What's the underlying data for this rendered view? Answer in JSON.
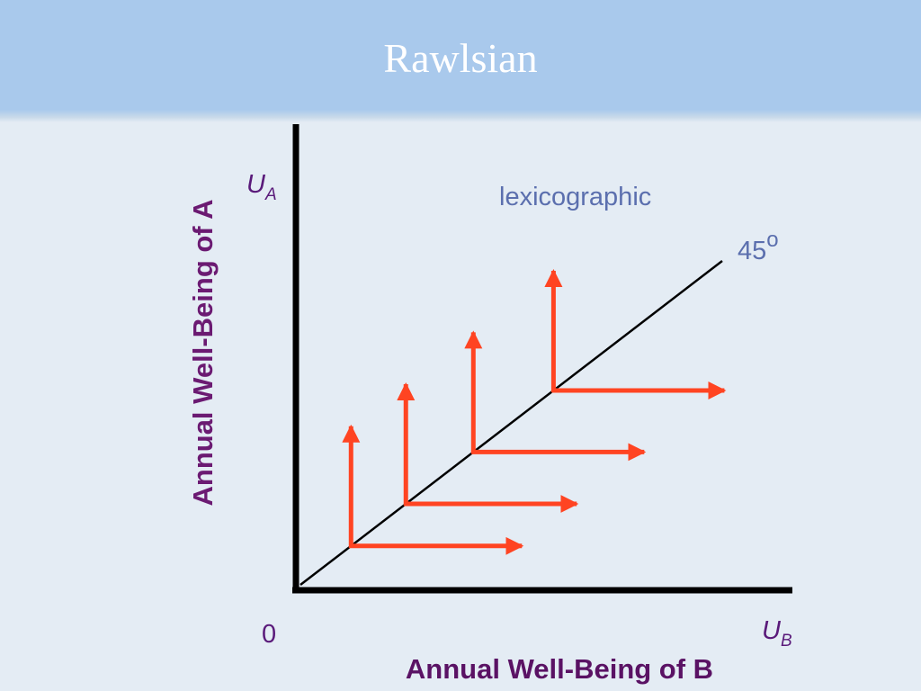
{
  "title": "Rawlsian",
  "axes": {
    "y_label": "Annual Well-Being of A",
    "x_label": "Annual Well-Being of B",
    "y_symbol": "U",
    "y_symbol_sub": "A",
    "x_symbol": "U",
    "x_symbol_sub": "B",
    "origin": "0"
  },
  "annotations": {
    "lexicographic": "lexicographic",
    "angle_value": "45",
    "angle_degree": "o"
  },
  "indifference_curves": [
    {
      "position_on_diagonal": 0.12
    },
    {
      "position_on_diagonal": 0.25
    },
    {
      "position_on_diagonal": 0.41
    },
    {
      "position_on_diagonal": 0.6
    }
  ],
  "colors": {
    "curve": "#ff4422",
    "axis": "#000000"
  }
}
